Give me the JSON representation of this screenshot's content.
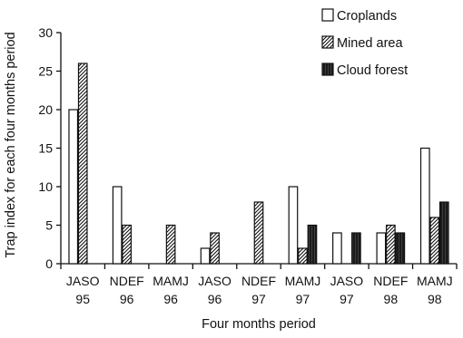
{
  "chart_data": {
    "type": "bar",
    "title": "",
    "xlabel": "Four months period",
    "ylabel": "Trap index for each four months period",
    "ylim": [
      0,
      30
    ],
    "yticks": [
      0,
      5,
      10,
      15,
      20,
      25,
      30
    ],
    "grid": false,
    "legend_position": "top-right",
    "categories": [
      [
        "JASO",
        "95"
      ],
      [
        "NDEF",
        "96"
      ],
      [
        "MAMJ",
        "96"
      ],
      [
        "JASO",
        "96"
      ],
      [
        "NDEF",
        "97"
      ],
      [
        "MAMJ",
        "97"
      ],
      [
        "JASO",
        "97"
      ],
      [
        "NDEF",
        "98"
      ],
      [
        "MAMJ",
        "98"
      ]
    ],
    "series": [
      {
        "name": "Croplands",
        "pattern": "white",
        "values": [
          20,
          10,
          0,
          2,
          0,
          10,
          4,
          4,
          15
        ]
      },
      {
        "name": "Mined area",
        "pattern": "hatched",
        "values": [
          26,
          5,
          5,
          4,
          8,
          2,
          0,
          5,
          6
        ]
      },
      {
        "name": "Cloud forest",
        "pattern": "dark",
        "values": [
          0,
          0,
          0,
          0,
          0,
          5,
          4,
          4,
          8
        ]
      }
    ],
    "colors": {
      "axis": "#111111",
      "bar_outline": "#111111",
      "dark_fill": "#1a1a1a",
      "white_fill": "#ffffff"
    }
  }
}
